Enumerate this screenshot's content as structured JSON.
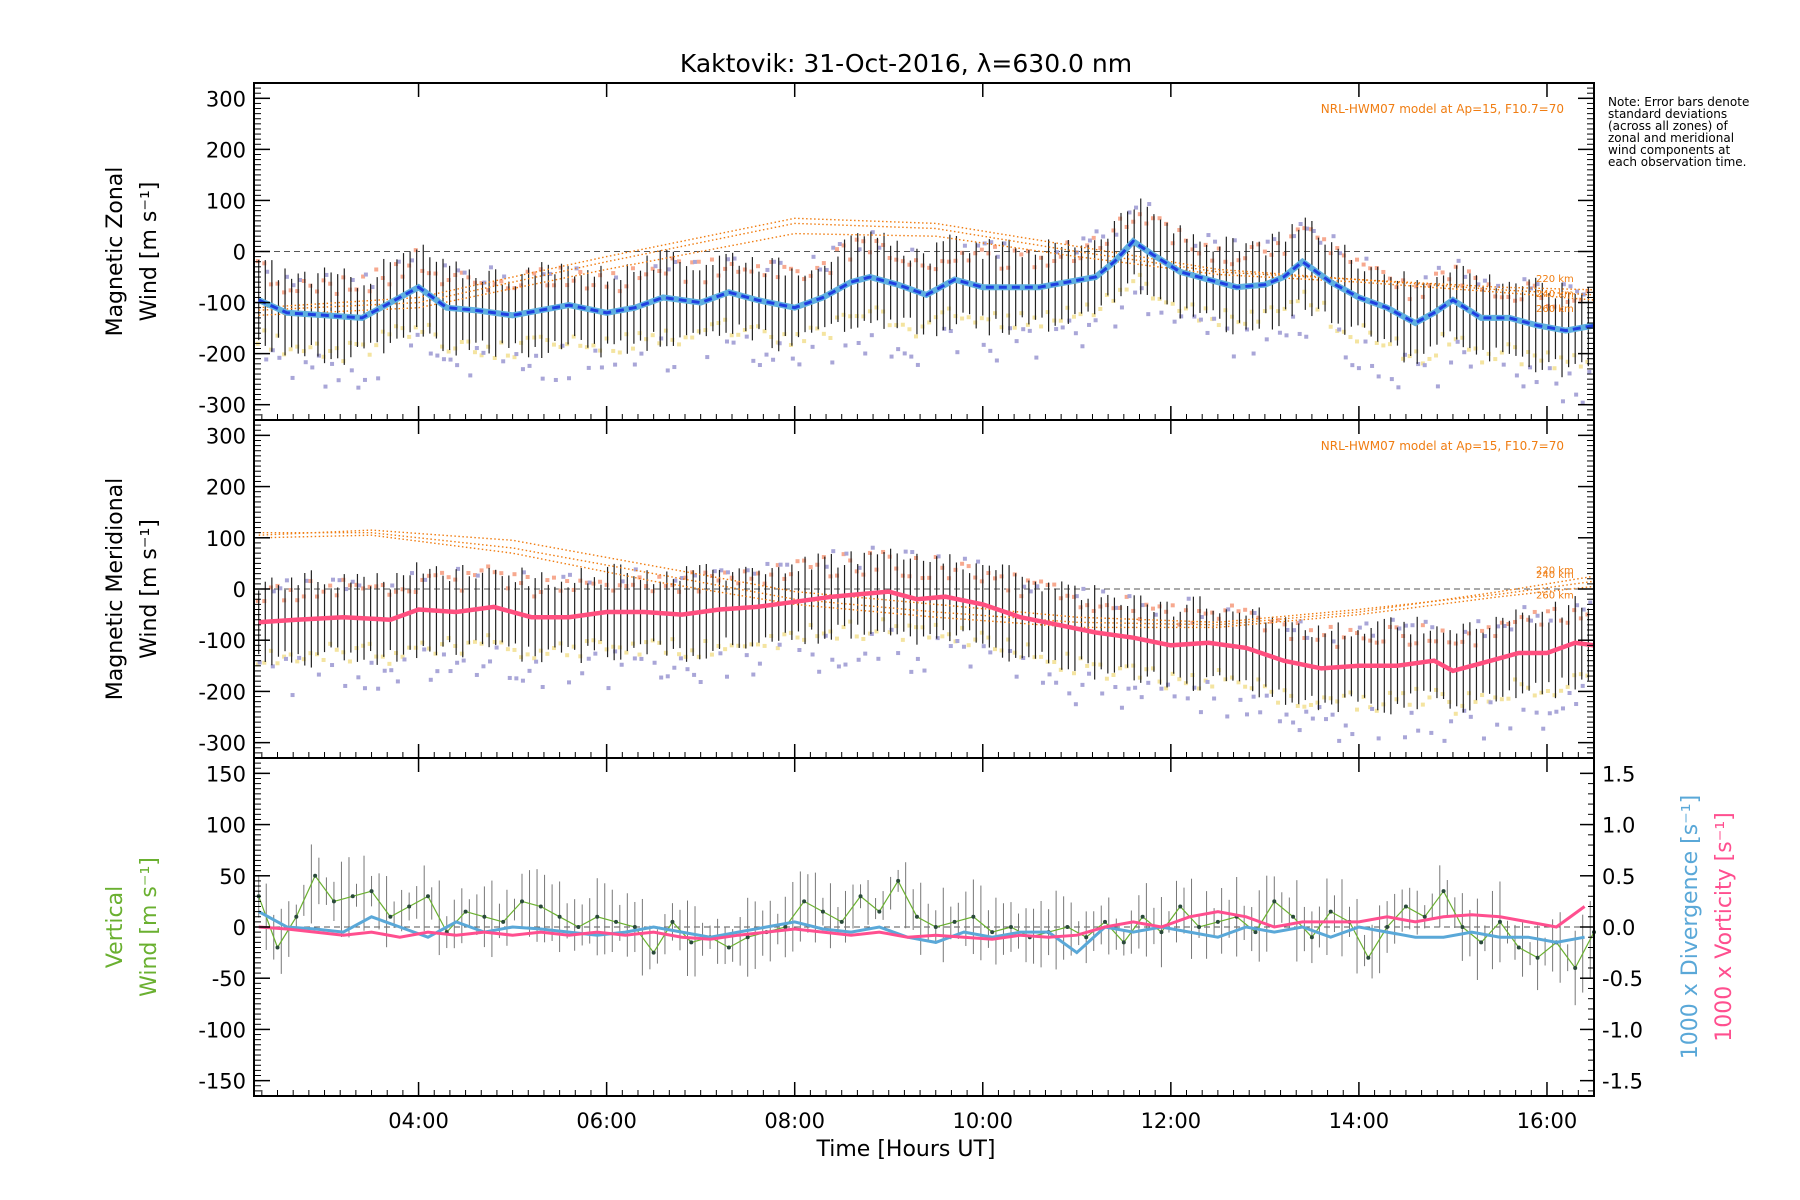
{
  "chart_data": {
    "type": "line",
    "title": "Kaktovik: 31-Oct-2016, λ=630.0 nm",
    "xlabel": "Time [Hours UT]",
    "x_ticks": [
      "04:00",
      "06:00",
      "08:00",
      "10:00",
      "12:00",
      "14:00",
      "16:00"
    ],
    "x_tick_hours": [
      4,
      6,
      8,
      10,
      12,
      14,
      16
    ],
    "xlim_hours": [
      2.25,
      16.5
    ],
    "grid": false,
    "note": "Note: Error bars denote standard deviations (across all zones) of zonal and meridional wind components at each observation time.",
    "colors": {
      "zonal": "#1f3fe0",
      "zonal_core": "#5fb0e0",
      "meridional": "#ff4f7f",
      "vertical": "#6ab030",
      "divergence": "#5aa8d8",
      "vorticity": "#ff4f8f",
      "model": "#f07d12",
      "errorbar": "#222222",
      "scatter_lav": "#a9a6d8",
      "scatter_salmon": "#f7a98f",
      "scatter_yellow": "#f4e4a0"
    },
    "panels": [
      {
        "id": "zonal",
        "ylabel_line1": "Magnetic Zonal",
        "ylabel_line2": "Wind [m s⁻¹]",
        "ylim": [
          -330,
          330
        ],
        "y_ticks": [
          300,
          200,
          100,
          0,
          -100,
          -200,
          -300
        ],
        "model_label": "NRL-HWM07 model at Ap=15, F10.7=70",
        "altitude_labels": [
          "220 km",
          "240 km",
          "260 km"
        ],
        "series": [
          {
            "role": "mean",
            "x": [
              2.3,
              2.6,
              3.0,
              3.4,
              3.7,
              4.0,
              4.3,
              4.6,
              5.0,
              5.3,
              5.6,
              6.0,
              6.3,
              6.6,
              7.0,
              7.3,
              7.6,
              8.0,
              8.3,
              8.6,
              8.8,
              9.1,
              9.4,
              9.7,
              10.0,
              10.3,
              10.6,
              10.9,
              11.2,
              11.4,
              11.6,
              11.8,
              12.1,
              12.4,
              12.7,
              13.0,
              13.2,
              13.4,
              13.7,
              14.0,
              14.3,
              14.6,
              14.8,
              15.0,
              15.3,
              15.6,
              15.9,
              16.2,
              16.5
            ],
            "y": [
              -95,
              -120,
              -125,
              -130,
              -100,
              -70,
              -110,
              -115,
              -125,
              -115,
              -105,
              -120,
              -110,
              -90,
              -100,
              -80,
              -95,
              -110,
              -90,
              -60,
              -50,
              -65,
              -85,
              -55,
              -70,
              -70,
              -70,
              -60,
              -50,
              -20,
              20,
              -5,
              -40,
              -55,
              -70,
              -65,
              -50,
              -20,
              -60,
              -90,
              -110,
              -140,
              -120,
              -95,
              -130,
              -130,
              -145,
              -155,
              -145
            ]
          }
        ],
        "model_lines": [
          {
            "x": [
              2.3,
              4.0,
              6.0,
              8.0,
              9.5,
              11.0,
              12.5,
              14.0,
              15.5,
              16.5
            ],
            "y": [
              -115,
              -100,
              -20,
              55,
              45,
              0,
              -40,
              -55,
              -70,
              -75
            ]
          },
          {
            "x": [
              2.3,
              4.0,
              6.0,
              8.0,
              9.5,
              11.0,
              12.5,
              14.0,
              15.5,
              16.5
            ],
            "y": [
              -110,
              -90,
              -10,
              65,
              55,
              10,
              -35,
              -55,
              -75,
              -85
            ]
          },
          {
            "x": [
              2.3,
              4.0,
              6.0,
              8.0,
              9.5,
              11.0,
              12.5,
              14.0,
              15.5,
              16.5
            ],
            "y": [
              -125,
              -110,
              -35,
              35,
              30,
              -10,
              -45,
              -60,
              -80,
              -95
            ]
          }
        ]
      },
      {
        "id": "meridional",
        "ylabel_line1": "Magnetic Meridional",
        "ylabel_line2": "Wind [m s⁻¹]",
        "ylim": [
          -330,
          330
        ],
        "y_ticks": [
          300,
          200,
          100,
          0,
          -100,
          -200,
          -300
        ],
        "model_label": "NRL-HWM07 model at Ap=15, F10.7=70",
        "altitude_labels": [
          "220 km",
          "240 km",
          "260 km"
        ],
        "series": [
          {
            "role": "mean",
            "x": [
              2.3,
              2.7,
              3.2,
              3.7,
              4.0,
              4.4,
              4.8,
              5.2,
              5.6,
              6.0,
              6.4,
              6.8,
              7.2,
              7.6,
              8.0,
              8.4,
              8.7,
              9.0,
              9.3,
              9.6,
              10.0,
              10.4,
              10.8,
              11.2,
              11.6,
              12.0,
              12.4,
              12.8,
              13.2,
              13.6,
              14.0,
              14.4,
              14.8,
              15.0,
              15.3,
              15.7,
              16.0,
              16.3,
              16.5
            ],
            "y": [
              -65,
              -60,
              -55,
              -60,
              -40,
              -45,
              -35,
              -55,
              -55,
              -45,
              -45,
              -50,
              -40,
              -35,
              -25,
              -15,
              -10,
              -5,
              -20,
              -15,
              -30,
              -55,
              -70,
              -85,
              -95,
              -110,
              -105,
              -115,
              -140,
              -155,
              -150,
              -150,
              -140,
              -160,
              -145,
              -125,
              -125,
              -105,
              -110
            ]
          }
        ],
        "model_lines": [
          {
            "x": [
              2.3,
              3.5,
              5.0,
              6.5,
              8.0,
              9.5,
              11.0,
              12.5,
              14.0,
              15.5,
              16.5
            ],
            "y": [
              105,
              115,
              95,
              45,
              -5,
              -30,
              -55,
              -65,
              -40,
              -10,
              15
            ]
          },
          {
            "x": [
              2.3,
              3.5,
              5.0,
              6.5,
              8.0,
              9.5,
              11.0,
              12.5,
              14.0,
              15.5,
              16.5
            ],
            "y": [
              110,
              110,
              80,
              30,
              -20,
              -45,
              -65,
              -70,
              -45,
              -5,
              25
            ]
          },
          {
            "x": [
              2.3,
              3.5,
              5.0,
              6.5,
              8.0,
              9.5,
              11.0,
              12.5,
              14.0,
              15.5,
              16.5
            ],
            "y": [
              100,
              105,
              70,
              15,
              -30,
              -55,
              -75,
              -75,
              -50,
              -15,
              5
            ]
          }
        ]
      },
      {
        "id": "vertical",
        "ylabel_line1": "Vertical",
        "ylabel_line2": "Wind [m s⁻¹]",
        "ylim": [
          -165,
          165
        ],
        "y_ticks": [
          150,
          100,
          50,
          0,
          -50,
          -100,
          -150
        ],
        "y2label_line1": "1000 x Divergence [s⁻¹]",
        "y2label_line2": "1000 x Vorticity [s⁻¹]",
        "y2lim": [
          -1.65,
          1.65
        ],
        "y2_ticks": [
          "1.5",
          "1.0",
          "0.5",
          "0.0",
          "-0.5",
          "-1.0",
          "-1.5"
        ],
        "y2_tick_values": [
          1.5,
          1.0,
          0.5,
          0.0,
          -0.5,
          -1.0,
          -1.5
        ],
        "series": [
          {
            "name": "Vertical",
            "x": [
              2.3,
              2.5,
              2.7,
              2.9,
              3.1,
              3.3,
              3.5,
              3.7,
              3.9,
              4.1,
              4.3,
              4.5,
              4.7,
              4.9,
              5.1,
              5.3,
              5.5,
              5.7,
              5.9,
              6.1,
              6.3,
              6.5,
              6.7,
              6.9,
              7.1,
              7.3,
              7.5,
              7.7,
              7.9,
              8.1,
              8.3,
              8.5,
              8.7,
              8.9,
              9.1,
              9.3,
              9.5,
              9.7,
              9.9,
              10.1,
              10.3,
              10.5,
              10.7,
              10.9,
              11.1,
              11.3,
              11.5,
              11.7,
              11.9,
              12.1,
              12.3,
              12.5,
              12.7,
              12.9,
              13.1,
              13.3,
              13.5,
              13.7,
              13.9,
              14.1,
              14.3,
              14.5,
              14.7,
              14.9,
              15.1,
              15.3,
              15.5,
              15.7,
              15.9,
              16.1,
              16.3,
              16.5
            ],
            "y": [
              30,
              -20,
              10,
              50,
              25,
              30,
              35,
              10,
              20,
              30,
              -5,
              15,
              10,
              5,
              25,
              20,
              10,
              0,
              10,
              5,
              0,
              -25,
              5,
              -15,
              -10,
              -20,
              -10,
              -5,
              0,
              25,
              15,
              5,
              30,
              15,
              45,
              10,
              0,
              5,
              10,
              -5,
              0,
              -10,
              -5,
              0,
              -10,
              5,
              -15,
              10,
              -5,
              20,
              0,
              5,
              10,
              -5,
              25,
              10,
              -10,
              15,
              5,
              -30,
              0,
              20,
              10,
              35,
              0,
              -15,
              5,
              -20,
              -30,
              -15,
              -40,
              -5
            ],
            "color_key": "vertical"
          },
          {
            "name": "1000 x Divergence",
            "axis": "right",
            "x": [
              2.3,
              2.6,
              2.9,
              3.2,
              3.5,
              3.8,
              4.1,
              4.4,
              4.7,
              5.0,
              5.3,
              5.6,
              5.9,
              6.2,
              6.5,
              6.8,
              7.1,
              7.4,
              7.7,
              8.0,
              8.3,
              8.6,
              8.9,
              9.2,
              9.5,
              9.8,
              10.1,
              10.4,
              10.7,
              11.0,
              11.3,
              11.6,
              11.9,
              12.2,
              12.5,
              12.8,
              13.1,
              13.4,
              13.7,
              14.0,
              14.3,
              14.6,
              14.9,
              15.2,
              15.5,
              15.8,
              16.1,
              16.4
            ],
            "y": [
              0.15,
              0.0,
              -0.02,
              -0.05,
              0.1,
              0.0,
              -0.1,
              0.05,
              -0.05,
              0.0,
              -0.02,
              -0.05,
              -0.08,
              -0.05,
              0.0,
              -0.05,
              -0.1,
              -0.05,
              0.0,
              0.05,
              -0.02,
              -0.05,
              0.0,
              -0.1,
              -0.15,
              -0.05,
              -0.1,
              -0.05,
              -0.05,
              -0.25,
              0.0,
              -0.05,
              0.0,
              -0.05,
              -0.1,
              0.0,
              -0.05,
              0.0,
              -0.1,
              0.0,
              -0.05,
              -0.1,
              -0.1,
              -0.05,
              -0.1,
              -0.1,
              -0.15,
              -0.1
            ],
            "color_key": "divergence"
          },
          {
            "name": "1000 x Vorticity",
            "axis": "right",
            "x": [
              2.3,
              2.6,
              2.9,
              3.2,
              3.5,
              3.8,
              4.1,
              4.4,
              4.7,
              5.0,
              5.3,
              5.6,
              5.9,
              6.2,
              6.5,
              6.8,
              7.1,
              7.4,
              7.7,
              8.0,
              8.3,
              8.6,
              8.9,
              9.2,
              9.5,
              9.8,
              10.1,
              10.4,
              10.7,
              11.0,
              11.3,
              11.6,
              11.9,
              12.2,
              12.5,
              12.8,
              13.1,
              13.4,
              13.7,
              14.0,
              14.3,
              14.6,
              14.9,
              15.2,
              15.5,
              15.8,
              16.1,
              16.4
            ],
            "y": [
              0.0,
              -0.02,
              -0.05,
              -0.08,
              -0.05,
              -0.1,
              -0.05,
              -0.08,
              -0.05,
              -0.08,
              -0.05,
              -0.08,
              -0.05,
              -0.08,
              -0.05,
              -0.1,
              -0.12,
              -0.08,
              -0.05,
              -0.02,
              -0.05,
              -0.08,
              -0.05,
              -0.1,
              -0.08,
              -0.1,
              -0.12,
              -0.08,
              -0.1,
              -0.08,
              0.0,
              0.05,
              0.0,
              0.1,
              0.15,
              0.1,
              0.0,
              0.05,
              0.05,
              0.05,
              0.1,
              0.05,
              0.1,
              0.12,
              0.1,
              0.05,
              0.0,
              0.2
            ],
            "color_key": "vorticity"
          }
        ]
      }
    ]
  }
}
